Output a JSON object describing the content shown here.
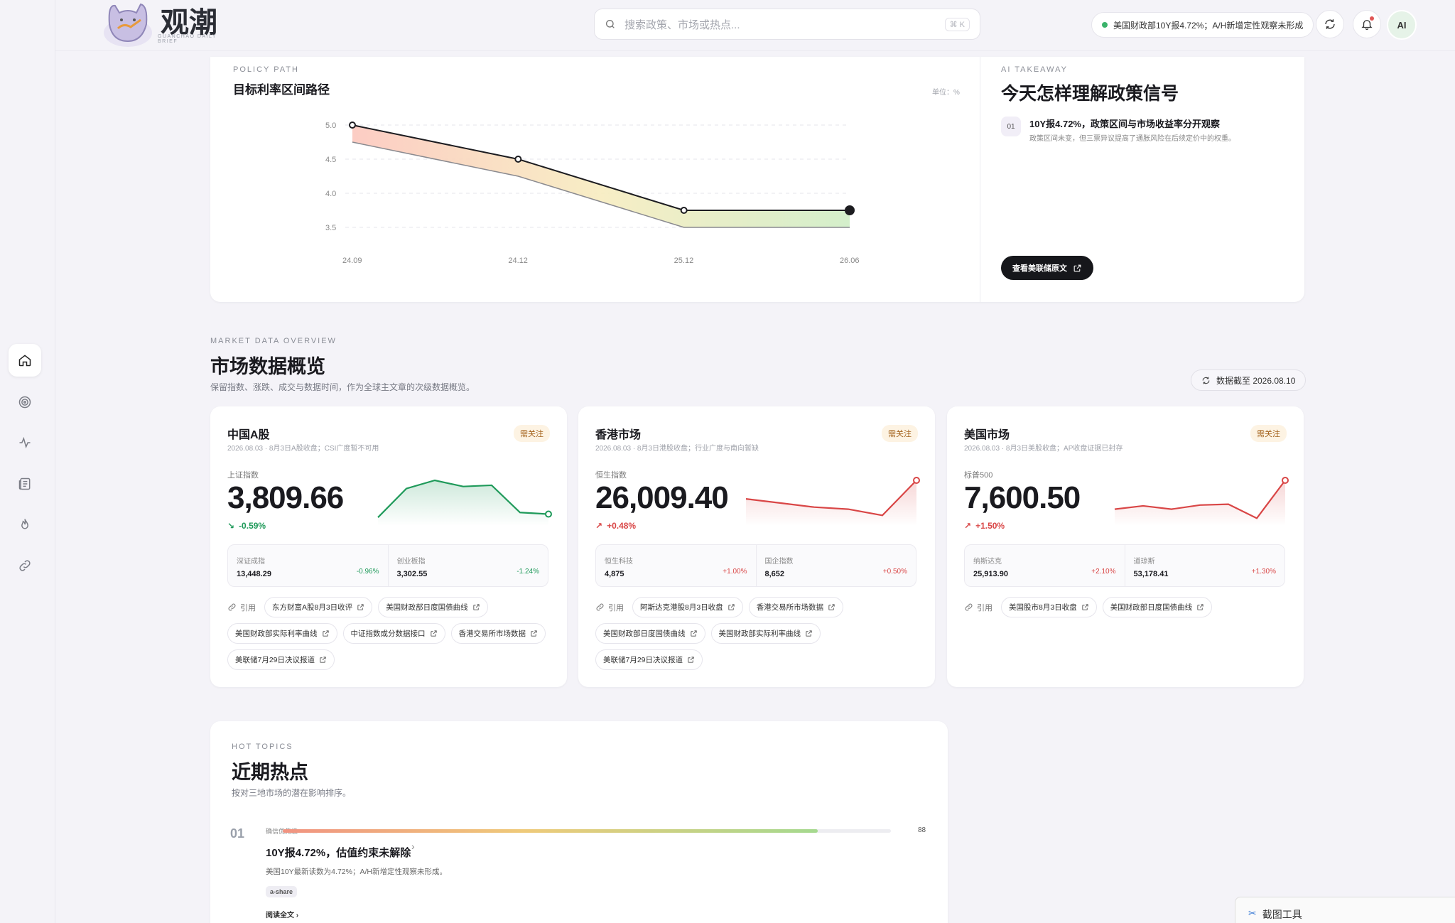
{
  "app": {
    "name": "观潮",
    "subtitle": "GUANCHAO DAILY BRIEF"
  },
  "search": {
    "placeholder": "搜索政策、市场或热点...",
    "shortcut": "⌘ K"
  },
  "header": {
    "status_text": "美国财政部10Y报4.72%；A/H新增定性观察未形成",
    "avatar_label": "AI"
  },
  "sidebar": {
    "items": [
      "home-icon",
      "target-icon",
      "activity-icon",
      "news-icon",
      "flame-icon",
      "link-icon"
    ],
    "active": 0
  },
  "policy": {
    "eyebrow": "POLICY PATH",
    "title": "目标利率区间路径",
    "unit": "单位：%",
    "chart_data": {
      "type": "area",
      "title": "目标利率区间路径",
      "x_ticks": [
        "24.09",
        "24.12",
        "25.12",
        "26.06"
      ],
      "y_ticks": [
        "5.0",
        "4.5",
        "4.0",
        "3.5"
      ],
      "ylim": [
        3.5,
        5.0
      ],
      "series": [
        {
          "values": [
            5.0,
            4.5,
            3.75,
            3.75
          ]
        },
        {
          "values": [
            4.75,
            4.25,
            3.5,
            3.5
          ]
        }
      ],
      "grid": true
    }
  },
  "ai": {
    "eyebrow": "AI TAKEAWAY",
    "title": "今天怎样理解政策信号",
    "item_num": "01",
    "item_title": "10Y报4.72%，政策区间与市场收益率分开观察",
    "item_desc": "政策区间未变，但三票异议提高了通胀风险在后续定价中的权重。",
    "button": "查看美联储原文"
  },
  "market": {
    "eyebrow": "MARKET DATA OVERVIEW",
    "title": "市场数据概览",
    "desc": "保留指数、涨跌、成交与数据时间，作为全球主文章的次级数据概览。",
    "date_pill": "数据截至 2026.08.10",
    "ref_label": "引用",
    "cards": [
      {
        "name": "中国A股",
        "badge": "需关注",
        "sub": "2026.08.03 · 8月3日A股收盘；CSI广度暂不可用",
        "index_label": "上证指数",
        "value": "3,809.66",
        "change": "-0.59%",
        "direction": "down",
        "color": "#1f9a5a",
        "spark": [
          0.1,
          0.8,
          1.0,
          0.85,
          0.88,
          0.22,
          0.18
        ],
        "subs": [
          {
            "name": "深证成指",
            "value": "13,448.29",
            "change": "-0.96%"
          },
          {
            "name": "创业板指",
            "value": "3,302.55",
            "change": "-1.24%"
          }
        ],
        "refs": [
          "东方财富A股8月3日收评",
          "美国财政部日度国债曲线",
          "美国财政部实际利率曲线",
          "中证指数成分数据接口",
          "香港交易所市场数据",
          "美联储7月29日决议报道"
        ]
      },
      {
        "name": "香港市场",
        "badge": "需关注",
        "sub": "2026.08.03 · 8月3日港股收盘；行业广度与南向暂缺",
        "index_label": "恒生指数",
        "value": "26,009.40",
        "change": "+0.48%",
        "direction": "up",
        "color": "#d94646",
        "spark": [
          0.55,
          0.45,
          0.35,
          0.3,
          0.15,
          1.0
        ],
        "subs": [
          {
            "name": "恒生科技",
            "value": "4,875",
            "change": "+1.00%"
          },
          {
            "name": "国企指数",
            "value": "8,652",
            "change": "+0.50%"
          }
        ],
        "refs": [
          "阿斯达克港股8月3日收盘",
          "香港交易所市场数据",
          "美国财政部日度国债曲线",
          "美国财政部实际利率曲线",
          "美联储7月29日决议报道"
        ]
      },
      {
        "name": "美国市场",
        "badge": "需关注",
        "sub": "2026.08.03 · 8月3日美股收盘；AP收盘证据已封存",
        "index_label": "标普500",
        "value": "7,600.50",
        "change": "+1.50%",
        "direction": "up",
        "color": "#d94646",
        "spark": [
          0.3,
          0.38,
          0.3,
          0.4,
          0.42,
          0.08,
          1.0
        ],
        "subs": [
          {
            "name": "纳斯达克",
            "value": "25,913.90",
            "change": "+2.10%"
          },
          {
            "name": "道琼斯",
            "value": "53,178.41",
            "change": "+1.30%"
          }
        ],
        "refs": [
          "美国股市8月3日收盘",
          "美国财政部日度国债曲线"
        ]
      }
    ]
  },
  "hot": {
    "eyebrow": "HOT TOPICS",
    "title": "近期热点",
    "desc": "按对三地市场的潜在影响排序。",
    "items": [
      {
        "rank": "01",
        "priority_label": "确信优先级",
        "score": "88",
        "score_pct": 0.88,
        "title": "10Y报4.72%，估值约束未解除",
        "desc": "美国10Y最新读数为4.72%；A/H新增定性观察未形成。",
        "tag": "a-share",
        "read_more": "阅读全文"
      }
    ]
  },
  "overlay": {
    "label": "截图工具"
  }
}
